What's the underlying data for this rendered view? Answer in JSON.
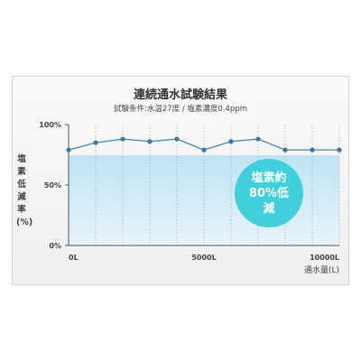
{
  "chart_data": {
    "type": "area",
    "title": "連続通水試験結果",
    "subtitle": "試験条件:水温27度 / 塩素濃度0.4ppm",
    "ylabel": "塩素低減率(%)",
    "xlabel": "通水量(L)",
    "x_ticks": [
      {
        "value": 0,
        "label": "0L"
      },
      {
        "value": 5000,
        "label": "5000L"
      },
      {
        "value": 10000,
        "label": "10000L"
      }
    ],
    "y_ticks": [
      {
        "value": 0,
        "label": "0%"
      },
      {
        "value": 50,
        "label": "50%"
      },
      {
        "value": 100,
        "label": "100%"
      }
    ],
    "xlim": [
      0,
      10000
    ],
    "ylim": [
      0,
      100
    ],
    "grid": "vertical-dotted",
    "series": [
      {
        "x": [
          0,
          1000,
          2000,
          3000,
          4000,
          5000,
          6000,
          7000,
          8000,
          9000,
          10000
        ],
        "values": [
          79,
          85,
          88,
          86,
          88,
          79,
          86,
          88,
          79,
          79,
          79
        ]
      }
    ],
    "annotation": "塩素約80%低減",
    "colors": {
      "line": "#4a86b0",
      "marker": "#3a78a8",
      "fill_top": "#bfe3f3",
      "fill_bottom": "#e8f4fb",
      "badge": "#3fd0dc",
      "axis": "#555555"
    }
  }
}
